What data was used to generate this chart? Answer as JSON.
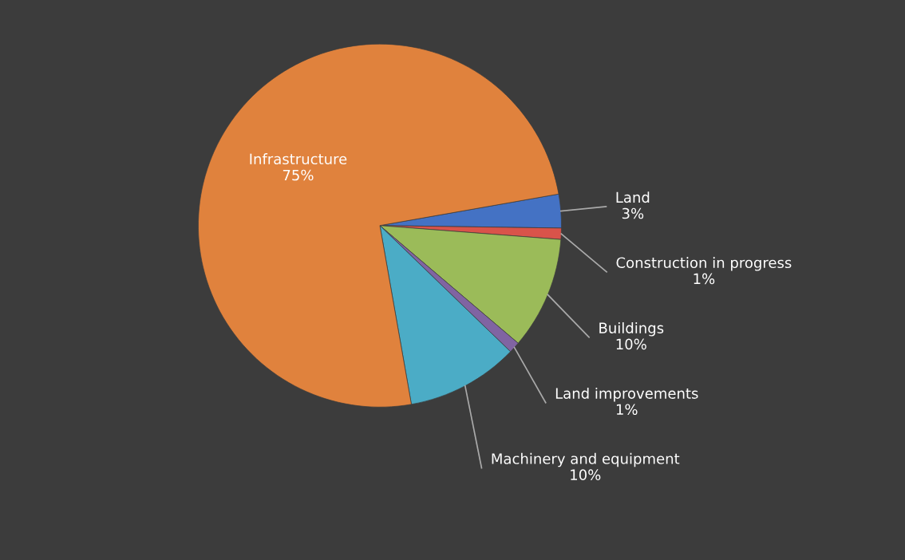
{
  "chart_data": {
    "type": "pie",
    "categories": [
      "Land",
      "Construction in progress",
      "Buildings",
      "Land improvements",
      "Machinery and equipment",
      "Infrastructure"
    ],
    "values": [
      3,
      1,
      10,
      1,
      10,
      75
    ],
    "value_labels": [
      "3%",
      "1%",
      "10%",
      "1%",
      "10%",
      "75%"
    ],
    "colors": [
      "#4472c4",
      "#d9534a",
      "#9bbb59",
      "#8064a2",
      "#4bacc6",
      "#e0823d"
    ],
    "legend": false
  }
}
